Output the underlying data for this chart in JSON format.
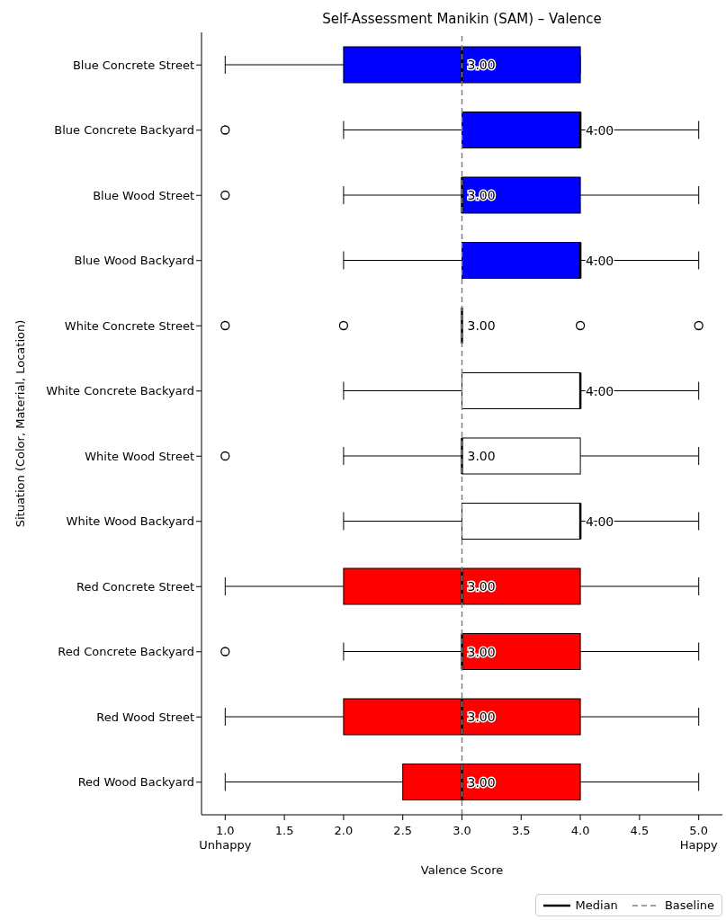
{
  "chart_data": {
    "type": "box",
    "orientation": "horizontal",
    "title": "Self-Assessment Manikin (SAM) – Valence",
    "xlabel": "Valence Score",
    "ylabel": "Situation (Color, Material, Location)",
    "categories": [
      "Blue Concrete Street",
      "Blue Concrete Backyard",
      "Blue Wood Street",
      "Blue Wood Backyard",
      "White Concrete Street",
      "White Concrete Backyard",
      "White Wood Street",
      "White Wood Backyard",
      "Red Concrete Street",
      "Red Concrete Backyard",
      "Red Wood Street",
      "Red Wood Backyard"
    ],
    "colors": [
      "#0000ff",
      "#0000ff",
      "#0000ff",
      "#0000ff",
      "#ffffff",
      "#ffffff",
      "#ffffff",
      "#ffffff",
      "#ff0000",
      "#ff0000",
      "#ff0000",
      "#ff0000"
    ],
    "series": [
      {
        "name": "Median",
        "color": "#000000",
        "boxes": [
          {
            "low": 1,
            "q1": 2,
            "median": 3,
            "q3": 4,
            "high": 4
          },
          {
            "low": 2,
            "q1": 3,
            "median": 4,
            "q3": 4,
            "high": 5,
            "outliers": [
              1
            ]
          },
          {
            "low": 2,
            "q1": 3,
            "median": 3,
            "q3": 4,
            "high": 5,
            "outliers": [
              1
            ]
          },
          {
            "low": 2,
            "q1": 3,
            "median": 4,
            "q3": 4,
            "high": 5
          },
          {
            "low": 3,
            "q1": 3,
            "median": 3,
            "q3": 3,
            "high": 3,
            "outliers": [
              1,
              2,
              4,
              5
            ]
          },
          {
            "low": 2,
            "q1": 3,
            "median": 4,
            "q3": 4,
            "high": 5
          },
          {
            "low": 2,
            "q1": 3,
            "median": 3,
            "q3": 4,
            "high": 5,
            "outliers": [
              1
            ]
          },
          {
            "low": 2,
            "q1": 3,
            "median": 4,
            "q3": 4,
            "high": 5
          },
          {
            "low": 1,
            "q1": 2,
            "median": 3,
            "q3": 4,
            "high": 5
          },
          {
            "low": 2,
            "q1": 3,
            "median": 3,
            "q3": 4,
            "high": 5,
            "outliers": [
              1
            ]
          },
          {
            "low": 1,
            "q1": 2,
            "median": 3,
            "q3": 4,
            "high": 5
          },
          {
            "low": 1,
            "q1": 2.5,
            "median": 3,
            "q3": 4,
            "high": 5
          }
        ],
        "value_labels": [
          "3.00",
          "4.00",
          "3.00",
          "4.00",
          "3.00",
          "4.00",
          "3.00",
          "4.00",
          "3.00",
          "3.00",
          "3.00",
          "3.00"
        ]
      }
    ],
    "xlim": [
      0.8,
      5.2
    ],
    "xticks": [
      {
        "value": 1,
        "label": "1.0\nUnhappy"
      },
      {
        "value": 1.5,
        "label": "1.5"
      },
      {
        "value": 2,
        "label": "2.0"
      },
      {
        "value": 2.5,
        "label": "2.5"
      },
      {
        "value": 3,
        "label": "3.0"
      },
      {
        "value": 3.5,
        "label": "3.5"
      },
      {
        "value": 4,
        "label": "4.0"
      },
      {
        "value": 4.5,
        "label": "4.5"
      },
      {
        "value": 5,
        "label": "5.0\nHappy"
      }
    ],
    "ref_lines": [
      {
        "axis": "x",
        "value": 3,
        "label": "Baseline",
        "color": "#808080",
        "line_style": "dashed"
      }
    ],
    "legend": "bottom right",
    "grid": false
  }
}
